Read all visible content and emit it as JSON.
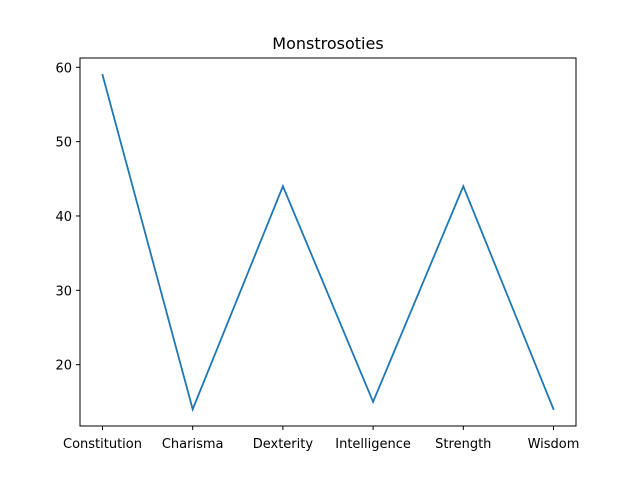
{
  "chart_data": {
    "type": "line",
    "title": "Monstrosoties",
    "xlabel": "",
    "ylabel": "",
    "categories": [
      "Constitution",
      "Charisma",
      "Dexterity",
      "Intelligence",
      "Strength",
      "Wisdom"
    ],
    "series": [
      {
        "values": [
          59,
          14,
          44,
          15,
          44,
          14
        ]
      }
    ],
    "yticks": [
      20,
      30,
      40,
      50,
      60
    ],
    "ylim": [
      11.75,
      61.25
    ],
    "grid": false,
    "legend": "none",
    "colors": {
      "line": "#1f77b4",
      "axes": "#000000",
      "background": "#ffffff"
    }
  }
}
